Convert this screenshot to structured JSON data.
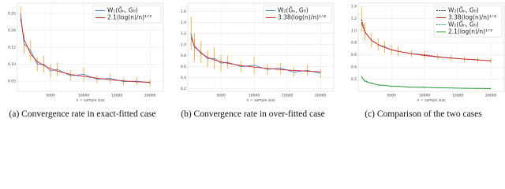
{
  "chart_data": [
    {
      "type": "line",
      "xlabel": "n = sample size",
      "caption": "(a) Convergence rate in exact-fitted case",
      "x": [
        500,
        1000,
        2000,
        3000,
        4000,
        5000,
        6000,
        8000,
        10000,
        12000,
        14000,
        16000,
        18000,
        20000
      ],
      "xlim": [
        0,
        22000
      ],
      "xticks": [
        5000,
        10000,
        15000,
        20000
      ],
      "ylim": [
        0.02,
        0.28
      ],
      "yticks": [
        0.05,
        {
          "value": 0.1,
          "label": "0.10"
        },
        0.15,
        {
          "value": 0.2,
          "label": "0.20"
        },
        0.25
      ],
      "grid": true,
      "legend": "upper right",
      "error_color": "#f0a030",
      "series": [
        {
          "name": "W₁(Ĝₙ, G₀)",
          "color": "#4a86c0",
          "values": [
            0.25,
            0.16,
            0.14,
            0.1,
            0.1,
            0.08,
            0.085,
            0.066,
            0.07,
            0.056,
            0.058,
            0.049,
            0.05,
            0.045
          ],
          "errors": [
            0.02,
            0.03,
            0.03,
            0.02,
            0.025,
            0.02,
            0.02,
            0.015,
            0.02,
            0.012,
            0.015,
            0.01,
            0.012,
            0.01
          ]
        },
        {
          "name": "2.1(log(n)/n)¹ᐟ²",
          "color": "#d62728",
          "values": [
            0.234,
            0.174,
            0.13,
            0.108,
            0.096,
            0.087,
            0.08,
            0.07,
            0.064,
            0.059,
            0.054,
            0.051,
            0.048,
            0.047
          ]
        }
      ]
    },
    {
      "type": "line",
      "xlabel": "n = sample size",
      "caption": "(b) Convergence rate in over-fitted case",
      "x": [
        500,
        1000,
        2000,
        3000,
        4000,
        5000,
        6000,
        8000,
        10000,
        12000,
        14000,
        16000,
        18000,
        20000
      ],
      "xlim": [
        0,
        22000
      ],
      "xticks": [
        5000,
        10000,
        15000,
        20000
      ],
      "ylim": [
        0.15,
        1.75
      ],
      "yticks": [
        0.2,
        0.4,
        0.6,
        0.8,
        {
          "value": 1.0,
          "label": "1.0"
        },
        1.2,
        1.4,
        1.6
      ],
      "grid": true,
      "legend": "upper right",
      "error_color": "#f0a030",
      "series": [
        {
          "name": "W₂(Ĝₙ, G₀)",
          "color": "#4a86c0",
          "values": [
            1.2,
            0.95,
            0.86,
            0.74,
            0.75,
            0.66,
            0.68,
            0.6,
            0.62,
            0.55,
            0.57,
            0.5,
            0.53,
            0.48
          ],
          "errors": [
            0.3,
            0.25,
            0.2,
            0.15,
            0.2,
            0.15,
            0.12,
            0.1,
            0.15,
            0.1,
            0.1,
            0.08,
            0.1,
            0.08
          ]
        },
        {
          "name": "3.38(log(n)/n)¹ᐟ⁴",
          "color": "#d62728",
          "values": [
            1.128,
            0.974,
            0.839,
            0.768,
            0.721,
            0.686,
            0.659,
            0.619,
            0.589,
            0.565,
            0.546,
            0.53,
            0.516,
            0.504
          ]
        }
      ]
    },
    {
      "type": "line",
      "xlabel": "n = sample size",
      "caption": "(c) Comparison of the two cases",
      "x": [
        500,
        1000,
        2000,
        3000,
        4000,
        5000,
        6000,
        8000,
        10000,
        12000,
        14000,
        16000,
        18000,
        20000
      ],
      "xlim": [
        0,
        22000
      ],
      "xticks": [
        5000,
        10000,
        15000,
        20000
      ],
      "ylim": [
        0,
        1.45
      ],
      "yticks": [
        0.2,
        0.4,
        0.6,
        0.8,
        {
          "value": 1.0,
          "label": "1.0"
        },
        1.2,
        1.4
      ],
      "grid": true,
      "legend": "upper right",
      "error_color": "#f0a030",
      "series": [
        {
          "name": "W₂(Ĝₙ, G₀)",
          "color": "#222222",
          "dashed": true,
          "values": [
            1.18,
            0.98,
            0.84,
            0.77,
            0.73,
            0.68,
            0.66,
            0.62,
            0.6,
            0.57,
            0.55,
            0.53,
            0.52,
            0.5
          ],
          "errors": [
            0.2,
            0.15,
            0.12,
            0.1,
            0.1,
            0.08,
            0.08,
            0.06,
            0.07,
            0.05,
            0.05,
            0.05,
            0.05,
            0.04
          ]
        },
        {
          "name": "3.38(log(n)/n)¹ᐟ⁴",
          "color": "#d62728",
          "values": [
            1.128,
            0.974,
            0.839,
            0.768,
            0.721,
            0.686,
            0.659,
            0.619,
            0.589,
            0.565,
            0.546,
            0.53,
            0.516,
            0.504
          ]
        },
        {
          "name": "W₁(Ĝₙ, G₀)",
          "color": "#1f8a8a",
          "dashed": true,
          "values": [
            0.25,
            0.16,
            0.14,
            0.1,
            0.1,
            0.08,
            0.085,
            0.066,
            0.07,
            0.056,
            0.058,
            0.049,
            0.05,
            0.045
          ]
        },
        {
          "name": "2.1(log(n)/n)¹ᐟ²",
          "color": "#2ca02c",
          "values": [
            0.234,
            0.174,
            0.13,
            0.108,
            0.096,
            0.087,
            0.08,
            0.07,
            0.064,
            0.059,
            0.054,
            0.051,
            0.048,
            0.047
          ]
        }
      ]
    }
  ]
}
